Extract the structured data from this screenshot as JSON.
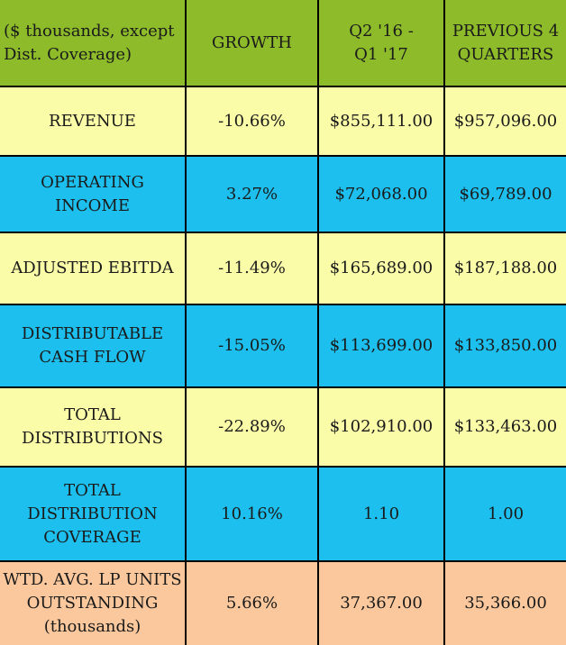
{
  "chart_data": {
    "type": "table",
    "columns": [
      "($ thousands, except\nDist. Coverage)",
      "GROWTH",
      "Q2 '16 -\nQ1 '17",
      "PREVIOUS 4\nQUARTERS"
    ],
    "rows": [
      {
        "label": "REVENUE",
        "growth": "-10.66%",
        "current": "$855,111.00",
        "previous": "$957,096.00"
      },
      {
        "label": "OPERATING\nINCOME",
        "growth": "3.27%",
        "current": "$72,068.00",
        "previous": "$69,789.00"
      },
      {
        "label": "ADJUSTED EBITDA",
        "growth": "-11.49%",
        "current": "$165,689.00",
        "previous": "$187,188.00"
      },
      {
        "label": "DISTRIBUTABLE\nCASH FLOW",
        "growth": "-15.05%",
        "current": "$113,699.00",
        "previous": "$133,850.00"
      },
      {
        "label": "TOTAL\nDISTRIBUTIONS",
        "growth": "-22.89%",
        "current": "$102,910.00",
        "previous": "$133,463.00"
      },
      {
        "label": "TOTAL\nDISTRIBUTION\nCOVERAGE",
        "growth": "10.16%",
        "current": "1.10",
        "previous": "1.00"
      },
      {
        "label": "WTD. AVG. LP UNITS\nOUTSTANDING\n(thousands)",
        "growth": "5.66%",
        "current": "37,367.00",
        "previous": "35,366.00"
      }
    ]
  },
  "colors": {
    "header": "#8dbb2a",
    "row_yellow": "#fafca8",
    "row_blue": "#1cbfee",
    "row_peach": "#fac89c",
    "grid": "#000000"
  }
}
